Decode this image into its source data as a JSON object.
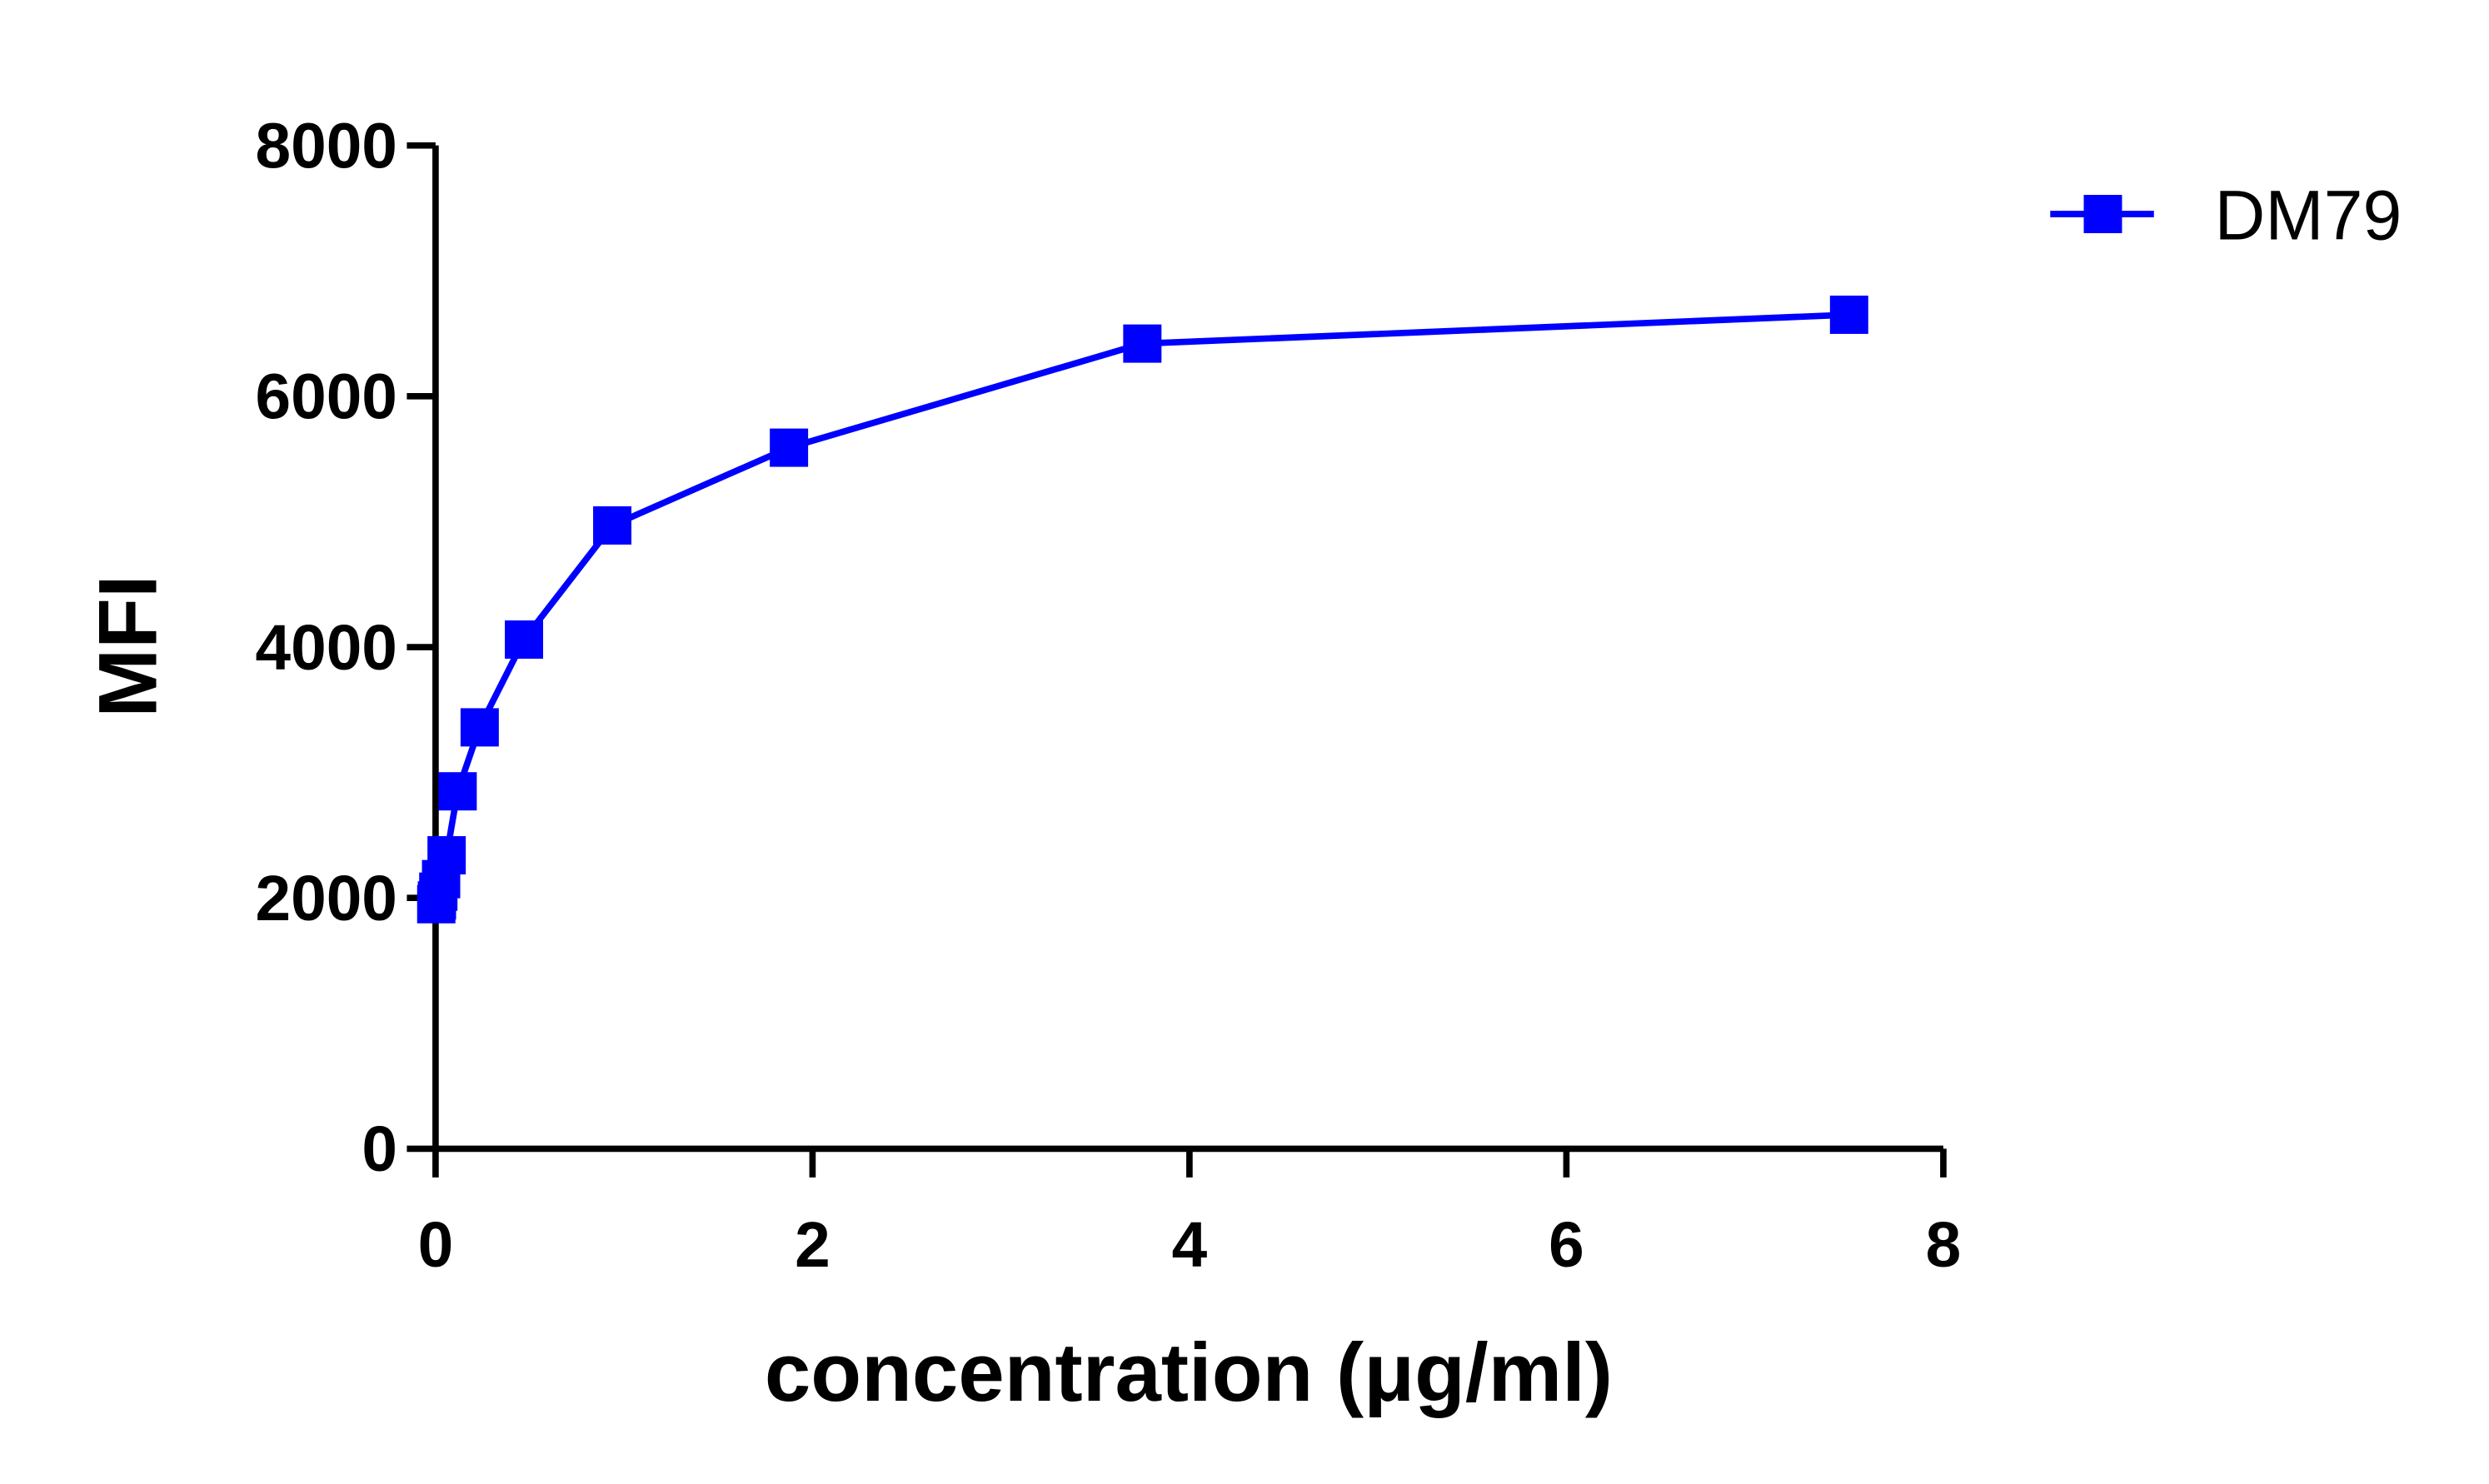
{
  "chart_data": {
    "type": "line",
    "xlabel": "concentration (μg/ml)",
    "ylabel": "MFI",
    "xlim": [
      0,
      8
    ],
    "ylim": [
      0,
      8000
    ],
    "xticks": [
      "0",
      "2",
      "4",
      "6",
      "8"
    ],
    "yticks": [
      "0",
      "2000",
      "4000",
      "6000",
      "8000"
    ],
    "grid": false,
    "legend_position": "top-right",
    "series": [
      {
        "name": "DM79",
        "color": "#0000ff",
        "marker": "square",
        "x": [
          7.5,
          3.75,
          1.875,
          0.9375,
          0.469,
          0.234,
          0.117,
          0.0586,
          0.0293,
          0.0146,
          0.0073,
          0.0037
        ],
        "y": [
          6650,
          6420,
          5590,
          4970,
          4060,
          3360,
          2850,
          2340,
          2150,
          2050,
          1980,
          1950
        ]
      }
    ]
  }
}
